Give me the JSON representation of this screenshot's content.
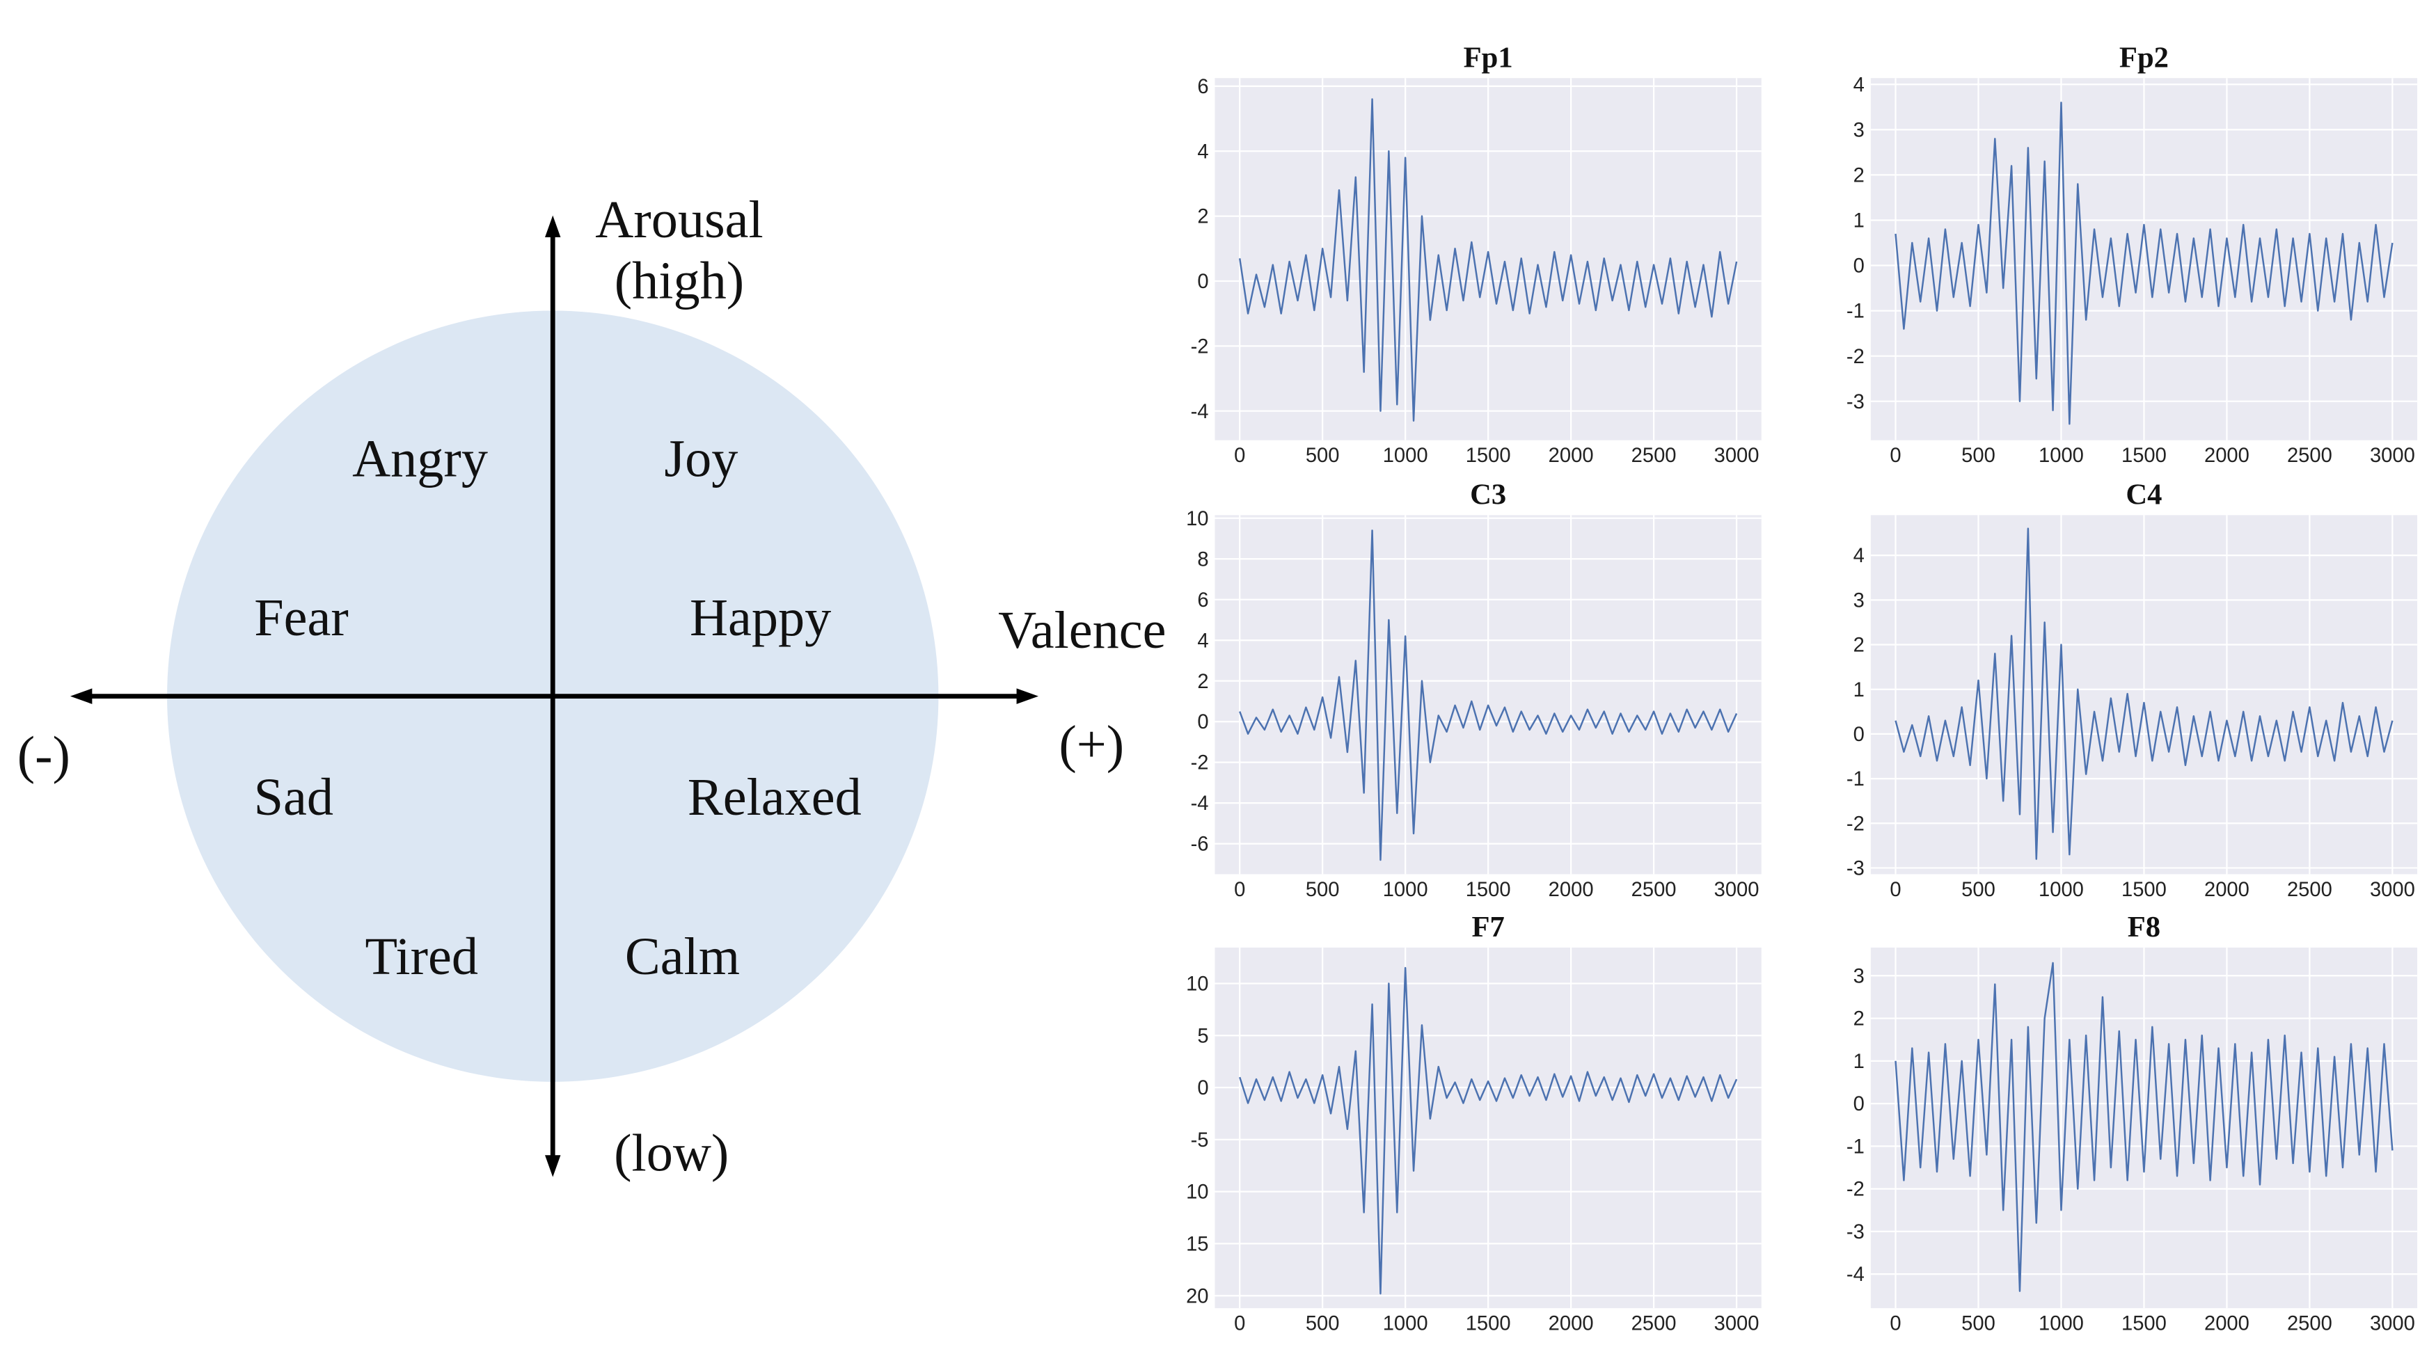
{
  "diagram": {
    "arousal": "Arousal",
    "high": "(high)",
    "low": "(low)",
    "valence": "Valence",
    "minus": "(-)",
    "plus": "(+)",
    "emotions": [
      "Angry",
      "Joy",
      "Fear",
      "Happy",
      "Sad",
      "Relaxed",
      "Tired",
      "Calm"
    ]
  },
  "chart_data": [
    {
      "type": "line",
      "title": "Fp1",
      "color": "#4c72b0",
      "grid": true,
      "xlim": [
        -150,
        3150
      ],
      "ylim": [
        -4.9,
        6.25
      ],
      "xticks": [
        0,
        500,
        1000,
        1500,
        2000,
        2500,
        3000
      ],
      "yticks": [
        -4,
        -2,
        0,
        2,
        4,
        6
      ],
      "x": [
        0,
        50,
        100,
        150,
        200,
        250,
        300,
        350,
        400,
        450,
        500,
        550,
        600,
        650,
        700,
        750,
        800,
        850,
        900,
        950,
        1000,
        1050,
        1100,
        1150,
        1200,
        1250,
        1300,
        1350,
        1400,
        1450,
        1500,
        1550,
        1600,
        1650,
        1700,
        1750,
        1800,
        1850,
        1900,
        1950,
        2000,
        2050,
        2100,
        2150,
        2200,
        2250,
        2300,
        2350,
        2400,
        2450,
        2500,
        2550,
        2600,
        2650,
        2700,
        2750,
        2800,
        2850,
        2900,
        2950,
        3000
      ],
      "values": [
        0.7,
        -1.0,
        0.2,
        -0.8,
        0.5,
        -1.0,
        0.6,
        -0.6,
        0.8,
        -0.9,
        1.0,
        -0.5,
        2.8,
        -0.6,
        3.2,
        -2.8,
        5.6,
        -4.0,
        4.0,
        -3.8,
        3.8,
        -4.3,
        2.0,
        -1.2,
        0.8,
        -0.9,
        1.0,
        -0.6,
        1.2,
        -0.5,
        0.9,
        -0.7,
        0.6,
        -0.9,
        0.7,
        -1.0,
        0.5,
        -0.8,
        0.9,
        -0.6,
        0.8,
        -0.7,
        0.6,
        -0.9,
        0.7,
        -0.6,
        0.5,
        -0.9,
        0.6,
        -0.8,
        0.5,
        -0.7,
        0.7,
        -1.0,
        0.6,
        -0.8,
        0.5,
        -1.1,
        0.9,
        -0.7,
        0.6
      ]
    },
    {
      "type": "line",
      "title": "Fp2",
      "color": "#4c72b0",
      "grid": true,
      "xlim": [
        -150,
        3150
      ],
      "ylim": [
        -3.86,
        4.14
      ],
      "xticks": [
        0,
        500,
        1000,
        1500,
        2000,
        2500,
        3000
      ],
      "yticks": [
        -3,
        -2,
        -1,
        0,
        1,
        2,
        3,
        4
      ],
      "x": [
        0,
        50,
        100,
        150,
        200,
        250,
        300,
        350,
        400,
        450,
        500,
        550,
        600,
        650,
        700,
        750,
        800,
        850,
        900,
        950,
        1000,
        1050,
        1100,
        1150,
        1200,
        1250,
        1300,
        1350,
        1400,
        1450,
        1500,
        1550,
        1600,
        1650,
        1700,
        1750,
        1800,
        1850,
        1900,
        1950,
        2000,
        2050,
        2100,
        2150,
        2200,
        2250,
        2300,
        2350,
        2400,
        2450,
        2500,
        2550,
        2600,
        2650,
        2700,
        2750,
        2800,
        2850,
        2900,
        2950,
        3000
      ],
      "values": [
        0.7,
        -1.4,
        0.5,
        -0.8,
        0.6,
        -1.0,
        0.8,
        -0.7,
        0.5,
        -0.9,
        0.9,
        -0.6,
        2.8,
        -0.5,
        2.2,
        -3.0,
        2.6,
        -2.5,
        2.3,
        -3.2,
        3.6,
        -3.5,
        1.8,
        -1.2,
        0.8,
        -0.7,
        0.6,
        -0.9,
        0.7,
        -0.6,
        0.9,
        -0.7,
        0.8,
        -0.6,
        0.7,
        -0.8,
        0.6,
        -0.7,
        0.8,
        -0.9,
        0.6,
        -0.7,
        0.9,
        -0.8,
        0.6,
        -0.7,
        0.8,
        -0.9,
        0.6,
        -0.8,
        0.7,
        -1.0,
        0.6,
        -0.8,
        0.7,
        -1.2,
        0.5,
        -0.8,
        0.9,
        -0.7,
        0.5
      ]
    },
    {
      "type": "line",
      "title": "C3",
      "color": "#4c72b0",
      "grid": true,
      "xlim": [
        -150,
        3150
      ],
      "ylim": [
        -7.5,
        10.15
      ],
      "xticks": [
        0,
        500,
        1000,
        1500,
        2000,
        2500,
        3000
      ],
      "yticks": [
        -6,
        -4,
        -2,
        0,
        2,
        4,
        6,
        8,
        10
      ],
      "x": [
        0,
        50,
        100,
        150,
        200,
        250,
        300,
        350,
        400,
        450,
        500,
        550,
        600,
        650,
        700,
        750,
        800,
        850,
        900,
        950,
        1000,
        1050,
        1100,
        1150,
        1200,
        1250,
        1300,
        1350,
        1400,
        1450,
        1500,
        1550,
        1600,
        1650,
        1700,
        1750,
        1800,
        1850,
        1900,
        1950,
        2000,
        2050,
        2100,
        2150,
        2200,
        2250,
        2300,
        2350,
        2400,
        2450,
        2500,
        2550,
        2600,
        2650,
        2700,
        2750,
        2800,
        2850,
        2900,
        2950,
        3000
      ],
      "values": [
        0.5,
        -0.6,
        0.2,
        -0.4,
        0.6,
        -0.5,
        0.3,
        -0.6,
        0.7,
        -0.4,
        1.2,
        -0.8,
        2.2,
        -1.5,
        3.0,
        -3.5,
        9.4,
        -6.8,
        5.0,
        -4.5,
        4.2,
        -5.5,
        2.0,
        -2.0,
        0.3,
        -0.5,
        0.8,
        -0.3,
        1.0,
        -0.4,
        0.8,
        -0.2,
        0.7,
        -0.5,
        0.5,
        -0.4,
        0.3,
        -0.6,
        0.4,
        -0.5,
        0.3,
        -0.4,
        0.6,
        -0.3,
        0.5,
        -0.6,
        0.4,
        -0.5,
        0.3,
        -0.4,
        0.5,
        -0.6,
        0.4,
        -0.5,
        0.6,
        -0.3,
        0.5,
        -0.4,
        0.6,
        -0.5,
        0.4
      ]
    },
    {
      "type": "line",
      "title": "C4",
      "color": "#4c72b0",
      "grid": true,
      "xlim": [
        -150,
        3150
      ],
      "ylim": [
        -3.14,
        4.9
      ],
      "xticks": [
        0,
        500,
        1000,
        1500,
        2000,
        2500,
        3000
      ],
      "yticks": [
        -3,
        -2,
        -1,
        0,
        1,
        2,
        3,
        4
      ],
      "x": [
        0,
        50,
        100,
        150,
        200,
        250,
        300,
        350,
        400,
        450,
        500,
        550,
        600,
        650,
        700,
        750,
        800,
        850,
        900,
        950,
        1000,
        1050,
        1100,
        1150,
        1200,
        1250,
        1300,
        1350,
        1400,
        1450,
        1500,
        1550,
        1600,
        1650,
        1700,
        1750,
        1800,
        1850,
        1900,
        1950,
        2000,
        2050,
        2100,
        2150,
        2200,
        2250,
        2300,
        2350,
        2400,
        2450,
        2500,
        2550,
        2600,
        2650,
        2700,
        2750,
        2800,
        2850,
        2900,
        2950,
        3000
      ],
      "values": [
        0.3,
        -0.4,
        0.2,
        -0.5,
        0.4,
        -0.6,
        0.3,
        -0.5,
        0.6,
        -0.7,
        1.2,
        -1.0,
        1.8,
        -1.5,
        2.2,
        -1.8,
        4.6,
        -2.8,
        2.5,
        -2.2,
        2.0,
        -2.7,
        1.0,
        -0.9,
        0.5,
        -0.6,
        0.8,
        -0.4,
        0.9,
        -0.5,
        0.7,
        -0.6,
        0.5,
        -0.4,
        0.6,
        -0.7,
        0.4,
        -0.5,
        0.5,
        -0.6,
        0.3,
        -0.5,
        0.5,
        -0.6,
        0.4,
        -0.5,
        0.3,
        -0.6,
        0.5,
        -0.4,
        0.6,
        -0.5,
        0.3,
        -0.6,
        0.7,
        -0.4,
        0.4,
        -0.5,
        0.6,
        -0.4,
        0.3
      ]
    },
    {
      "type": "line",
      "title": "F7",
      "color": "#4c72b0",
      "grid": true,
      "xlim": [
        -150,
        3150
      ],
      "ylim": [
        -21.2,
        13.45
      ],
      "xticks": [
        0,
        500,
        1000,
        1500,
        2000,
        2500,
        3000
      ],
      "yticks": [
        {
          "value": -20,
          "label": "20"
        },
        {
          "value": -15,
          "label": "15"
        },
        {
          "value": -10,
          "label": "10"
        },
        -5,
        0,
        5,
        10
      ],
      "x": [
        0,
        50,
        100,
        150,
        200,
        250,
        300,
        350,
        400,
        450,
        500,
        550,
        600,
        650,
        700,
        750,
        800,
        850,
        900,
        950,
        1000,
        1050,
        1100,
        1150,
        1200,
        1250,
        1300,
        1350,
        1400,
        1450,
        1500,
        1550,
        1600,
        1650,
        1700,
        1750,
        1800,
        1850,
        1900,
        1950,
        2000,
        2050,
        2100,
        2150,
        2200,
        2250,
        2300,
        2350,
        2400,
        2450,
        2500,
        2550,
        2600,
        2650,
        2700,
        2750,
        2800,
        2850,
        2900,
        2950,
        3000
      ],
      "values": [
        1,
        -1.5,
        0.8,
        -1.2,
        1.0,
        -1.3,
        1.5,
        -1.0,
        0.8,
        -1.5,
        1.2,
        -2.5,
        2.0,
        -4.0,
        3.5,
        -12.0,
        8.0,
        -19.8,
        10.0,
        -12.0,
        11.5,
        -8.0,
        6.0,
        -3.0,
        2.0,
        -1.0,
        0.5,
        -1.5,
        0.8,
        -1.2,
        0.6,
        -1.3,
        0.9,
        -1.0,
        1.2,
        -0.8,
        1.0,
        -1.2,
        1.3,
        -0.9,
        1.1,
        -1.3,
        1.5,
        -0.8,
        1.0,
        -1.2,
        0.9,
        -1.4,
        1.2,
        -0.8,
        1.3,
        -1.0,
        0.9,
        -1.2,
        1.1,
        -0.9,
        1.0,
        -1.3,
        1.2,
        -1.0,
        0.8
      ]
    },
    {
      "type": "line",
      "title": "F8",
      "color": "#4c72b0",
      "grid": true,
      "xlim": [
        -150,
        3150
      ],
      "ylim": [
        -4.8,
        3.66
      ],
      "xticks": [
        0,
        500,
        1000,
        1500,
        2000,
        2500,
        3000
      ],
      "yticks": [
        -4,
        -3,
        -2,
        -1,
        0,
        1,
        2,
        3
      ],
      "x": [
        0,
        50,
        100,
        150,
        200,
        250,
        300,
        350,
        400,
        450,
        500,
        550,
        600,
        650,
        700,
        750,
        800,
        850,
        900,
        950,
        1000,
        1050,
        1100,
        1150,
        1200,
        1250,
        1300,
        1350,
        1400,
        1450,
        1500,
        1550,
        1600,
        1650,
        1700,
        1750,
        1800,
        1850,
        1900,
        1950,
        2000,
        2050,
        2100,
        2150,
        2200,
        2250,
        2300,
        2350,
        2400,
        2450,
        2500,
        2550,
        2600,
        2650,
        2700,
        2750,
        2800,
        2850,
        2900,
        2950,
        3000
      ],
      "values": [
        1.0,
        -1.8,
        1.3,
        -1.5,
        1.2,
        -1.6,
        1.4,
        -1.3,
        1.0,
        -1.7,
        1.5,
        -1.2,
        2.8,
        -2.5,
        1.5,
        -4.4,
        1.8,
        -2.8,
        2.0,
        3.3,
        -2.5,
        1.5,
        -2.0,
        1.6,
        -1.8,
        2.5,
        -1.5,
        1.7,
        -1.8,
        1.5,
        -1.6,
        1.8,
        -1.3,
        1.4,
        -1.7,
        1.5,
        -1.4,
        1.6,
        -1.8,
        1.3,
        -1.5,
        1.4,
        -1.7,
        1.2,
        -1.9,
        1.5,
        -1.3,
        1.6,
        -1.4,
        1.2,
        -1.6,
        1.3,
        -1.7,
        1.1,
        -1.5,
        1.4,
        -1.2,
        1.3,
        -1.6,
        1.4,
        -1.1
      ]
    }
  ]
}
